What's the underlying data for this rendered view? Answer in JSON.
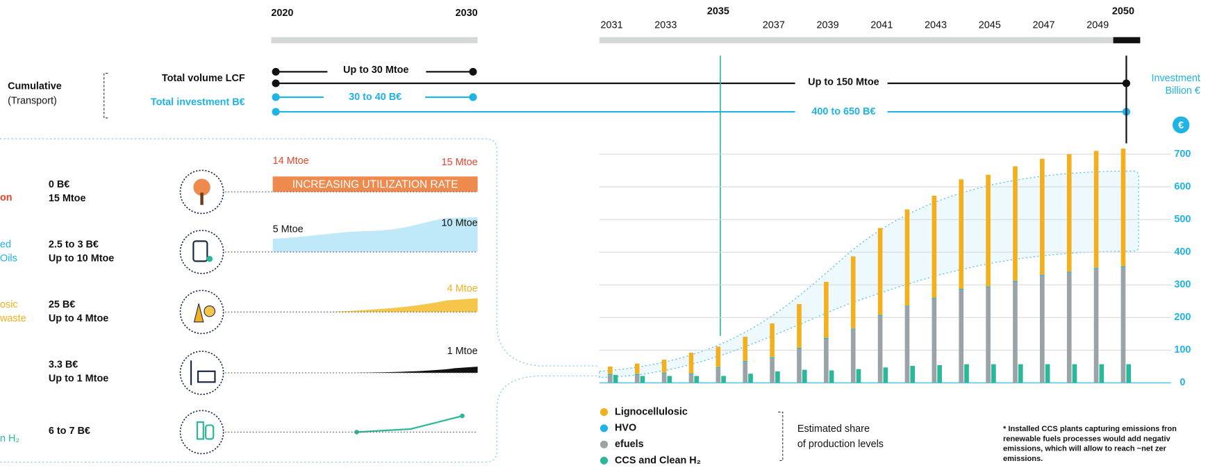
{
  "timeline": {
    "start": "2020",
    "end": "2030",
    "row_title": "Cumulative",
    "row_subtitle": "(Transport)",
    "volume_label": "Total volume LCF",
    "investment_label": "Total investment B€",
    "volume_2030": "Up to 30 Mtoe",
    "investment_2030": "30 to 40 B€",
    "volume_2050": "Up to 150 Mtoe",
    "investment_2050": "400 to 650 B€",
    "axis_title": [
      "Investment",
      "Billion €"
    ],
    "currency_icon": "€"
  },
  "rows": [
    {
      "name": [
        "on"
      ],
      "investment": "0 B€",
      "volume": "15 Mtoe",
      "start_label": "14 Mtoe",
      "end_label": "15 Mtoe",
      "banner": "INCREASING UTILIZATION RATE"
    },
    {
      "name": [
        "ed",
        "Oils"
      ],
      "investment": "2.5 to 3 B€",
      "volume": "Up to 10 Mtoe",
      "start_label": "5 Mtoe",
      "end_label": "10 Mtoe"
    },
    {
      "name": [
        "osic",
        "waste"
      ],
      "investment": "25 B€",
      "volume": "Up to 4 Mtoe",
      "end_label": "4 Mtoe"
    },
    {
      "investment": "3.3 B€",
      "volume": "Up to 1 Mtoe",
      "end_label": "1 Mtoe"
    },
    {
      "name": [
        "n H₂"
      ],
      "investment": "6 to 7 B€"
    }
  ],
  "chart_data": {
    "type": "bar",
    "categories": [
      "2031",
      null,
      "2033",
      null,
      "2035",
      null,
      "2037",
      null,
      "2039",
      null,
      "2041",
      null,
      "2043",
      null,
      "2045",
      null,
      "2047",
      null,
      "2049",
      "2050"
    ],
    "highlight": [
      4,
      19
    ],
    "series": [
      {
        "name": "Lignocellulosic",
        "color": "#f2b01e",
        "values": [
          23,
          32,
          40,
          63,
          63,
          74,
          104,
          134,
          172,
          221,
          266,
          295,
          313,
          335,
          342,
          351,
          355,
          360,
          358,
          360
        ]
      },
      {
        "name": "HVO",
        "color": "#1fb3e6",
        "values": [
          3,
          3,
          3,
          3,
          3,
          3,
          3,
          3,
          3,
          3,
          3,
          3,
          3,
          3,
          3,
          3,
          3,
          3,
          3,
          3
        ]
      },
      {
        "name": "efuels",
        "color": "#9aa3a6",
        "values": [
          24,
          24,
          28,
          26,
          45,
          64,
          75,
          104,
          134,
          163,
          205,
          233,
          257,
          285,
          292,
          309,
          328,
          337,
          349,
          354
        ]
      },
      {
        "name": "CCS and Clean H₂",
        "color": "#2bb89a",
        "values": [
          24,
          21,
          21,
          21,
          21,
          28,
          35,
          40,
          38,
          42,
          47,
          52,
          54,
          57,
          57,
          57,
          57,
          57,
          57,
          57
        ]
      }
    ],
    "ylim": [
      0,
      700
    ],
    "yticks": [
      0,
      100,
      200,
      300,
      400,
      500,
      600,
      700
    ],
    "grid": true
  },
  "legend_note": [
    "Estimated share",
    "of production levels"
  ],
  "footnote": [
    "* Installed CCS plants capturing emissions fron",
    "renewable fuels processes would add negativ",
    "emissions,  which will allow to reach ~net zer",
    "emissions."
  ]
}
